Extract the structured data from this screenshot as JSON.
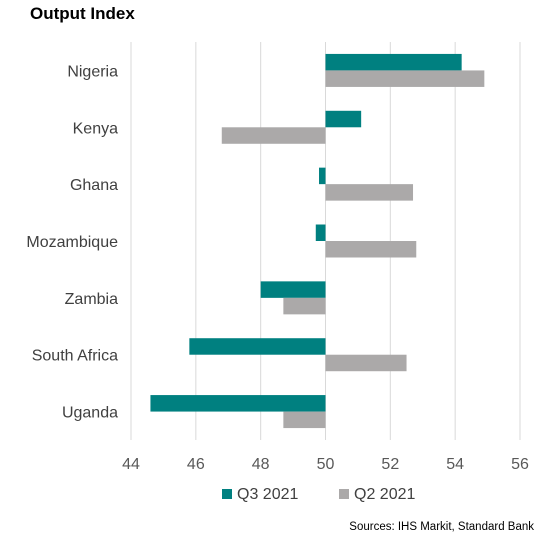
{
  "chart_data": {
    "type": "bar",
    "orientation": "horizontal",
    "title": "Output Index",
    "categories": [
      "Nigeria",
      "Kenya",
      "Ghana",
      "Mozambique",
      "Zambia",
      "South Africa",
      "Uganda"
    ],
    "baseline": 50,
    "series": [
      {
        "name": "Q3 2021",
        "color": "#008080",
        "values": [
          54.2,
          51.1,
          49.8,
          49.7,
          48.0,
          45.8,
          44.6
        ]
      },
      {
        "name": "Q2 2021",
        "color": "#ABA9A9",
        "values": [
          54.9,
          46.8,
          52.7,
          52.8,
          48.7,
          52.5,
          48.7
        ]
      }
    ],
    "xlim": [
      44,
      56
    ],
    "xticks": [
      44,
      46,
      48,
      50,
      52,
      54,
      56
    ],
    "grid": "vertical",
    "legend": "bottom"
  },
  "source": "Sources: IHS Markit, Standard Bank"
}
